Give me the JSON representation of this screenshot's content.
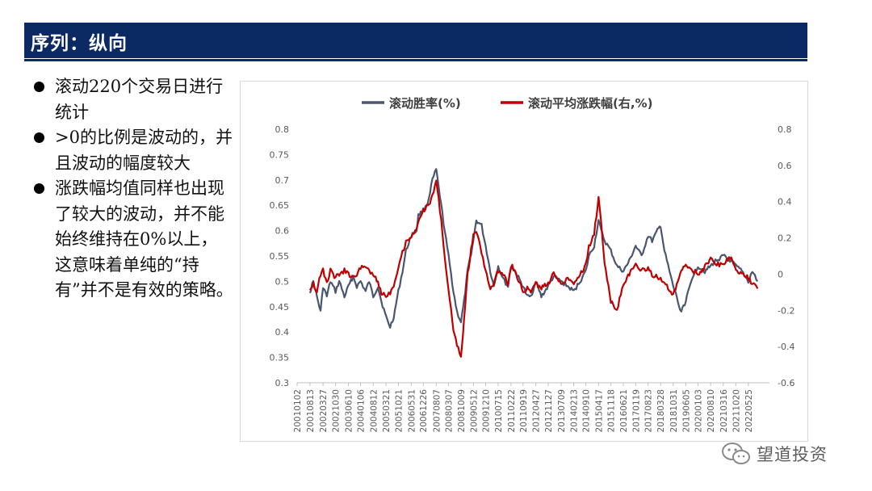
{
  "header": {
    "title": "序列：纵向"
  },
  "bullets": [
    "滚动220个交易日进行统计",
    ">0的比例是波动的，并且波动的幅度较大",
    "涨跌幅均值同样也出现了较大的波动，并不能始终维持在0%以上，这意味着单纯的“持有”并不是有效的策略。"
  ],
  "watermark": {
    "text": "望道投资"
  },
  "colors": {
    "title_bar": "#0b2a63",
    "win_rate": "#4a5570",
    "avg_return": "#c00000"
  },
  "chart_data": {
    "type": "line",
    "legend_position": "top",
    "grid": false,
    "x_tick_labels": [
      "20010102",
      "20010813",
      "20020327",
      "20021030",
      "20030610",
      "20040106",
      "20040812",
      "20050321",
      "20051021",
      "20060531",
      "20061226",
      "20070807",
      "20080307",
      "20081009",
      "20090512",
      "20091210",
      "20100715",
      "20110222",
      "20110919",
      "20120427",
      "20121127",
      "20130709",
      "20140213",
      "20140910",
      "20150417",
      "20151118",
      "20160621",
      "20170119",
      "20170823",
      "20180328",
      "20181031",
      "20190605",
      "20200103",
      "20200810",
      "20210316",
      "20211020",
      "20220525"
    ],
    "y_left": {
      "min": 0.3,
      "max": 0.8,
      "ticks": [
        "0.3",
        "0.35",
        "0.4",
        "0.45",
        "0.5",
        "0.55",
        "0.6",
        "0.65",
        "0.7",
        "0.75",
        "0.8"
      ]
    },
    "y_right": {
      "min": -0.6,
      "max": 0.8,
      "ticks": [
        "-0.6",
        "-0.4",
        "-0.2",
        "0",
        "0.2",
        "0.4",
        "0.6",
        "0.8"
      ]
    },
    "series": [
      {
        "name": "滚动胜率(%)",
        "axis": "left",
        "x": [
          "20010813",
          "20011010",
          "20011210",
          "20020212",
          "20020327",
          "20020601",
          "20020801",
          "20021030",
          "20030101",
          "20030401",
          "20030610",
          "20030901",
          "20031101",
          "20040106",
          "20040401",
          "20040601",
          "20040812",
          "20041101",
          "20050101",
          "20050321",
          "20050601",
          "20050801",
          "20051021",
          "20060101",
          "20060301",
          "20060531",
          "20060901",
          "20061001",
          "20061226",
          "20070401",
          "20070601",
          "20070807",
          "20071101",
          "20080101",
          "20080307",
          "20080601",
          "20080801",
          "20081009",
          "20081201",
          "20090201",
          "20090512",
          "20090701",
          "20091001",
          "20091210",
          "20100301",
          "20100501",
          "20100715",
          "20101101",
          "20110101",
          "20110222",
          "20110501",
          "20110919",
          "20111201",
          "20120201",
          "20120427",
          "20120801",
          "20121127",
          "20130301",
          "20130709",
          "20131101",
          "20140213",
          "20140601",
          "20140910",
          "20141101",
          "20150201",
          "20150417",
          "20150601",
          "20150801",
          "20151118",
          "20160301",
          "20160621",
          "20161001",
          "20170119",
          "20170501",
          "20170823",
          "20171101",
          "20180201",
          "20180328",
          "20180601",
          "20181031",
          "20190101",
          "20190301",
          "20190605",
          "20191001",
          "20200103",
          "20200501",
          "20200810",
          "20201101",
          "20210316",
          "20210801",
          "20211020",
          "20220201",
          "20220525",
          "20220801",
          "20221101"
        ],
        "y": [
          0.48,
          0.5,
          0.47,
          0.44,
          0.49,
          0.47,
          0.5,
          0.48,
          0.5,
          0.47,
          0.49,
          0.51,
          0.49,
          0.5,
          0.48,
          0.5,
          0.47,
          0.49,
          0.46,
          0.43,
          0.41,
          0.43,
          0.48,
          0.52,
          0.56,
          0.59,
          0.6,
          0.63,
          0.64,
          0.66,
          0.7,
          0.72,
          0.65,
          0.6,
          0.55,
          0.48,
          0.44,
          0.42,
          0.46,
          0.52,
          0.58,
          0.62,
          0.61,
          0.57,
          0.52,
          0.49,
          0.53,
          0.5,
          0.49,
          0.53,
          0.52,
          0.49,
          0.47,
          0.47,
          0.5,
          0.47,
          0.49,
          0.51,
          0.5,
          0.49,
          0.48,
          0.5,
          0.52,
          0.55,
          0.57,
          0.62,
          0.6,
          0.58,
          0.56,
          0.53,
          0.52,
          0.54,
          0.57,
          0.55,
          0.59,
          0.58,
          0.6,
          0.61,
          0.56,
          0.49,
          0.47,
          0.44,
          0.46,
          0.51,
          0.53,
          0.52,
          0.53,
          0.54,
          0.55,
          0.54,
          0.53,
          0.52,
          0.5,
          0.52,
          0.5
        ]
      },
      {
        "name": "滚动平均涨跌幅(右,%)",
        "axis": "right",
        "x": [
          "20010813",
          "20011010",
          "20011210",
          "20020212",
          "20020327",
          "20020601",
          "20020801",
          "20021030",
          "20030101",
          "20030401",
          "20030610",
          "20030901",
          "20031101",
          "20040106",
          "20040401",
          "20040601",
          "20040812",
          "20041101",
          "20050101",
          "20050321",
          "20050601",
          "20050801",
          "20051021",
          "20060101",
          "20060301",
          "20060531",
          "20060901",
          "20061001",
          "20061226",
          "20070401",
          "20070601",
          "20070807",
          "20071101",
          "20080101",
          "20080307",
          "20080601",
          "20080801",
          "20081009",
          "20081201",
          "20090201",
          "20090512",
          "20090701",
          "20091001",
          "20091210",
          "20100301",
          "20100501",
          "20100715",
          "20101101",
          "20110101",
          "20110222",
          "20110501",
          "20110919",
          "20111201",
          "20120201",
          "20120427",
          "20120801",
          "20121127",
          "20130301",
          "20130709",
          "20131101",
          "20140213",
          "20140601",
          "20140910",
          "20141101",
          "20150201",
          "20150417",
          "20150601",
          "20150801",
          "20151118",
          "20160301",
          "20160621",
          "20161001",
          "20170119",
          "20170501",
          "20170823",
          "20171101",
          "20180201",
          "20180328",
          "20180601",
          "20181031",
          "20190101",
          "20190301",
          "20190605",
          "20191001",
          "20200103",
          "20200501",
          "20200810",
          "20201101",
          "20210316",
          "20210801",
          "20211020",
          "20220201",
          "20220525",
          "20220801",
          "20221101"
        ],
        "y": [
          -0.08,
          -0.05,
          -0.1,
          0.0,
          0.02,
          -0.05,
          0.02,
          -0.02,
          0.0,
          0.02,
          0.0,
          -0.02,
          0.0,
          0.03,
          0.05,
          0.02,
          0.0,
          -0.05,
          -0.1,
          -0.12,
          -0.1,
          -0.06,
          0.04,
          0.12,
          0.18,
          0.21,
          0.24,
          0.3,
          0.35,
          0.38,
          0.43,
          0.52,
          0.3,
          0.1,
          -0.1,
          -0.3,
          -0.4,
          -0.45,
          -0.25,
          0.0,
          0.22,
          0.24,
          0.12,
          0.02,
          -0.08,
          -0.05,
          0.02,
          0.0,
          -0.05,
          0.05,
          0.02,
          -0.1,
          -0.08,
          -0.1,
          -0.05,
          -0.08,
          -0.05,
          0.0,
          -0.05,
          -0.02,
          -0.05,
          0.0,
          0.05,
          0.15,
          0.22,
          0.42,
          0.3,
          0.05,
          -0.15,
          -0.2,
          -0.05,
          0.0,
          0.05,
          0.02,
          0.03,
          0.0,
          -0.02,
          -0.02,
          -0.05,
          -0.12,
          -0.06,
          0.0,
          0.05,
          0.02,
          0.0,
          0.04,
          0.08,
          0.06,
          0.05,
          0.1,
          0.02,
          0.0,
          -0.02,
          -0.05,
          -0.08
        ]
      }
    ]
  }
}
